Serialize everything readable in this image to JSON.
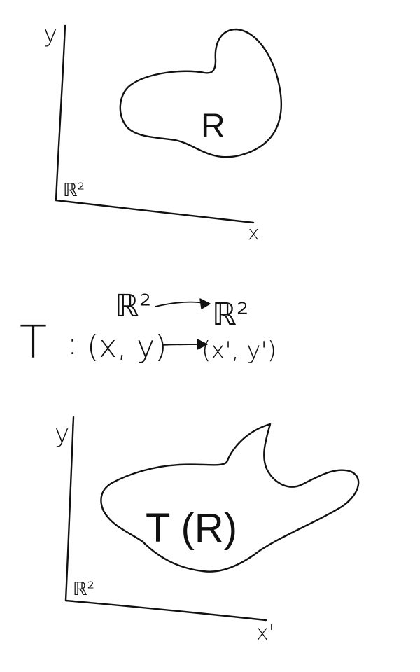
{
  "top_plot": {
    "y_axis_label": "y",
    "x_axis_label": "x",
    "space_label": "ℝ²",
    "region_label": "R"
  },
  "mapping": {
    "transform_name": "T",
    "colon": ":",
    "domain_space": "ℝ²",
    "codomain_space": "ℝ²",
    "input_point": "(x, y)",
    "output_point": "(x', y')"
  },
  "bottom_plot": {
    "y_axis_label": "y'",
    "x_axis_label": "x'",
    "space_label": "ℝ²",
    "region_label": "T (R)"
  }
}
